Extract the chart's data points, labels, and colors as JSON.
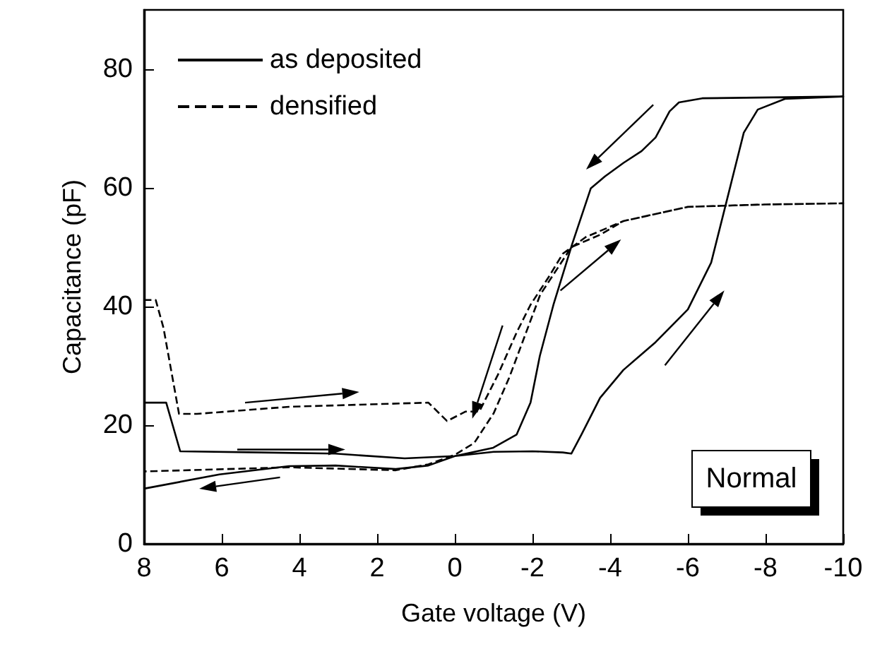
{
  "chart_data": {
    "type": "line",
    "xlabel": "Gate voltage (V)",
    "ylabel": "Capacitance (pF)",
    "xlim": [
      8,
      -10
    ],
    "xticks": [
      8,
      6,
      4,
      2,
      0,
      -2,
      -4,
      -6,
      -8,
      -10
    ],
    "ylim": [
      0,
      90
    ],
    "yticks": [
      0,
      20,
      40,
      60,
      80
    ],
    "grid": false,
    "legend": "top left",
    "marker": "none",
    "annotations": [
      "Normal"
    ],
    "series": [
      {
        "name": "as deposited",
        "color": "#000000",
        "line_style": "solid",
        "x": [
          8,
          7.43,
          7.07,
          5,
          3.08,
          1.29,
          0,
          -1,
          -2,
          -2.78,
          -3.0,
          -3.26,
          -3.74,
          -4.34,
          -5.17,
          -6.0,
          -6.6,
          -7.08,
          -7.44,
          -7.8,
          -8.5,
          -10,
          -6.37,
          -5.77,
          -5.53,
          -5.17,
          -4.81,
          -4.34,
          -3.86,
          -3.5,
          -3.02,
          -2.54,
          -2.19,
          -1.95,
          -1.59,
          -0.99,
          0,
          0.68,
          1.52,
          3.07,
          4.27,
          6.06,
          8
        ],
        "values": [
          23.8,
          23.8,
          15.6,
          15.4,
          15.2,
          14.4,
          14.8,
          15.5,
          15.6,
          15.4,
          15.2,
          18.4,
          24.6,
          29.3,
          34,
          39.5,
          47.4,
          59.9,
          69.3,
          73.2,
          75,
          75.4,
          75.1,
          74.4,
          72.9,
          68.5,
          66.2,
          64.2,
          61.9,
          59.9,
          50.5,
          40.3,
          31.7,
          23.8,
          18.4,
          16.2,
          14.8,
          13.2,
          12.6,
          13.2,
          13.1,
          11.7,
          9.3
        ]
      },
      {
        "name": "densified",
        "color": "#000000",
        "line_style": "dashed",
        "x": [
          8,
          7.7,
          7.5,
          7.1,
          6.64,
          4.27,
          0.68,
          0.2,
          -0.28,
          -0.63,
          -1.11,
          -1.59,
          -1.95,
          -2.42,
          -2.78,
          -3.37,
          -4.34,
          -6,
          -8,
          -10,
          -8,
          -6,
          -4.34,
          -3.74,
          -3.0,
          -2.5,
          -2.2,
          -1.8,
          -1.4,
          -1.0,
          -0.5,
          0,
          0.68,
          1.52,
          4.27,
          8
        ],
        "values": [
          41.1,
          41.1,
          36.4,
          21.9,
          21.9,
          23.1,
          23.8,
          20.7,
          22.3,
          22.3,
          28.5,
          35.6,
          40.3,
          45,
          48.9,
          51.7,
          54.4,
          56.8,
          57.2,
          57.4,
          57.2,
          56.8,
          54.4,
          52.1,
          50,
          45,
          42,
          35,
          28,
          22,
          17,
          15,
          13.4,
          12.4,
          12.9,
          12.2
        ]
      }
    ]
  }
}
